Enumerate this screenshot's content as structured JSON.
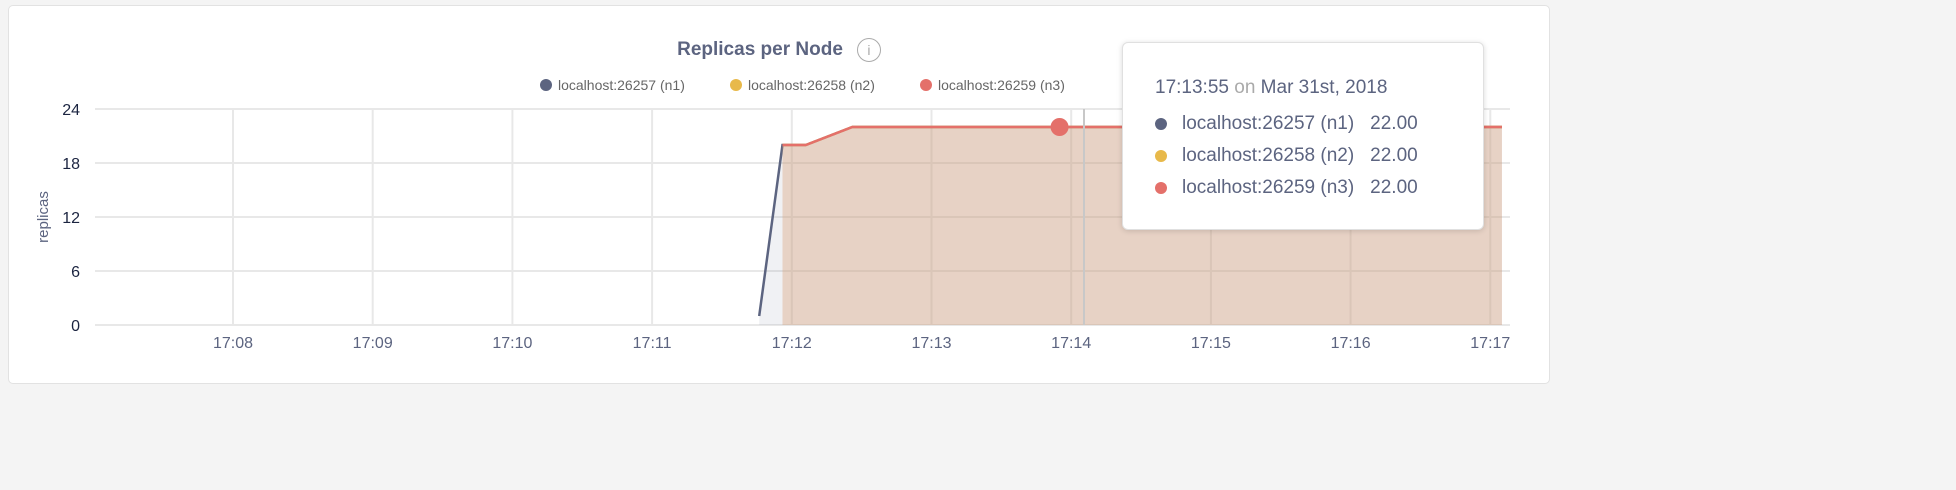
{
  "chart_data": {
    "type": "area",
    "title": "Replicas per Node",
    "ylabel": "replicas",
    "ylim": [
      0,
      24
    ],
    "yticks": [
      "0",
      "6",
      "12",
      "18",
      "24"
    ],
    "xticks": [
      "17:08",
      "17:09",
      "17:10",
      "17:11",
      "17:12",
      "17:13",
      "17:14",
      "17:15",
      "17:16",
      "17:17"
    ],
    "grid": true,
    "legend_position": "top-right",
    "series": [
      {
        "name": "localhost:26257 (n1)",
        "color": "#5c6480",
        "points": [
          [
            "17:11:46",
            1
          ],
          [
            "17:11:56",
            20
          ],
          [
            "17:12:06",
            20
          ],
          [
            "17:12:26",
            22
          ],
          [
            "17:17:05",
            22
          ]
        ]
      },
      {
        "name": "localhost:26258 (n2)",
        "color": "#e8b94a",
        "points": [
          [
            "17:11:56",
            20
          ],
          [
            "17:12:06",
            20
          ],
          [
            "17:12:26",
            22
          ],
          [
            "17:17:05",
            22
          ]
        ]
      },
      {
        "name": "localhost:26259 (n3)",
        "color": "#e4706a",
        "points": [
          [
            "17:11:56",
            20
          ],
          [
            "17:12:06",
            20
          ],
          [
            "17:12:26",
            22
          ],
          [
            "17:17:05",
            22
          ]
        ]
      }
    ],
    "hover_point": {
      "time": "17:13:55",
      "value": 22
    }
  },
  "tooltip": {
    "time": "17:13:55",
    "on": "on",
    "date": "Mar 31st, 2018",
    "rows": [
      {
        "label": "localhost:26257 (n1)",
        "value": "22.00",
        "color": "#5c6480"
      },
      {
        "label": "localhost:26258 (n2)",
        "value": "22.00",
        "color": "#e8b94a"
      },
      {
        "label": "localhost:26259 (n3)",
        "value": "22.00",
        "color": "#e4706a"
      }
    ]
  },
  "info_icon": "info-icon"
}
